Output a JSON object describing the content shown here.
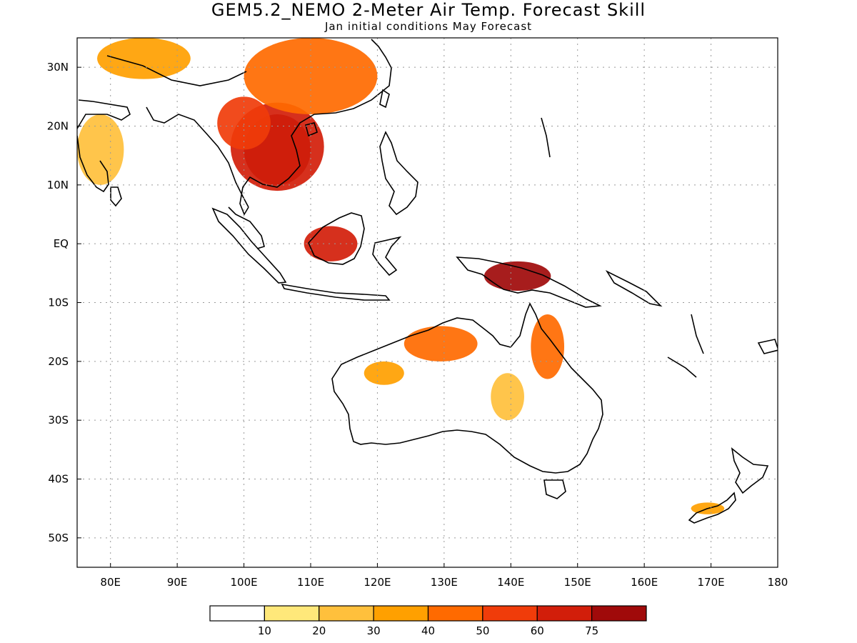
{
  "title": "GEM5.2_NEMO 2-Meter Air Temp. Forecast Skill",
  "subtitle": "Jan initial conditions  May Forecast",
  "map": {
    "lon_range": [
      75,
      180
    ],
    "lat_range": [
      -55,
      35
    ],
    "lon_ticks": [
      {
        "value": 80,
        "label": "80E"
      },
      {
        "value": 90,
        "label": "90E"
      },
      {
        "value": 100,
        "label": "100E"
      },
      {
        "value": 110,
        "label": "110E"
      },
      {
        "value": 120,
        "label": "120E"
      },
      {
        "value": 130,
        "label": "130E"
      },
      {
        "value": 140,
        "label": "140E"
      },
      {
        "value": 150,
        "label": "150E"
      },
      {
        "value": 160,
        "label": "160E"
      },
      {
        "value": 170,
        "label": "170E"
      },
      {
        "value": 180,
        "label": "180"
      }
    ],
    "lat_ticks": [
      {
        "value": 30,
        "label": "30N"
      },
      {
        "value": 20,
        "label": "20N"
      },
      {
        "value": 10,
        "label": "10N"
      },
      {
        "value": 0,
        "label": "EQ"
      },
      {
        "value": -10,
        "label": "10S"
      },
      {
        "value": -20,
        "label": "20S"
      },
      {
        "value": -30,
        "label": "30S"
      },
      {
        "value": -40,
        "label": "40S"
      },
      {
        "value": -50,
        "label": "50S"
      }
    ],
    "gridlines": true
  },
  "colorbar": {
    "levels": [
      "10",
      "20",
      "30",
      "40",
      "50",
      "60",
      "75"
    ],
    "colors": [
      "#ffffff",
      "#ffe87a",
      "#ffc03c",
      "#ffa000",
      "#ff6a00",
      "#f03c0a",
      "#d21e0a",
      "#a00a0a"
    ]
  },
  "chart_data": {
    "type": "heatmap",
    "title": "GEM5.2_NEMO 2-Meter Air Temp. Forecast Skill",
    "subtitle": "Jan initial conditions  May Forecast",
    "xlabel": "",
    "ylabel": "",
    "xlim": [
      75,
      180
    ],
    "ylim": [
      -55,
      35
    ],
    "levels": [
      10,
      20,
      30,
      40,
      50,
      60,
      75
    ],
    "regions": [
      {
        "lon": [
          100,
          110
        ],
        "lat": [
          10,
          22
        ],
        "level": 75
      },
      {
        "lon": [
          98,
          112
        ],
        "lat": [
          9,
          24
        ],
        "level": 60
      },
      {
        "lon": [
          96,
          104
        ],
        "lat": [
          16,
          25
        ],
        "level": 50
      },
      {
        "lon": [
          100,
          120
        ],
        "lat": [
          22,
          35
        ],
        "level": 40
      },
      {
        "lon": [
          78,
          92
        ],
        "lat": [
          28,
          35
        ],
        "level": 30
      },
      {
        "lon": [
          75,
          82
        ],
        "lat": [
          10,
          22
        ],
        "level": 20
      },
      {
        "lon": [
          109,
          117
        ],
        "lat": [
          -3,
          3
        ],
        "level": 60
      },
      {
        "lon": [
          136,
          146
        ],
        "lat": [
          -8,
          -3
        ],
        "level": 75
      },
      {
        "lon": [
          124,
          135
        ],
        "lat": [
          -20,
          -14
        ],
        "level": 40
      },
      {
        "lon": [
          143,
          148
        ],
        "lat": [
          -23,
          -12
        ],
        "level": 40
      },
      {
        "lon": [
          118,
          124
        ],
        "lat": [
          -24,
          -20
        ],
        "level": 30
      },
      {
        "lon": [
          137,
          142
        ],
        "lat": [
          -30,
          -22
        ],
        "level": 20
      },
      {
        "lon": [
          167,
          172
        ],
        "lat": [
          -46,
          -44
        ],
        "level": 30
      }
    ]
  }
}
